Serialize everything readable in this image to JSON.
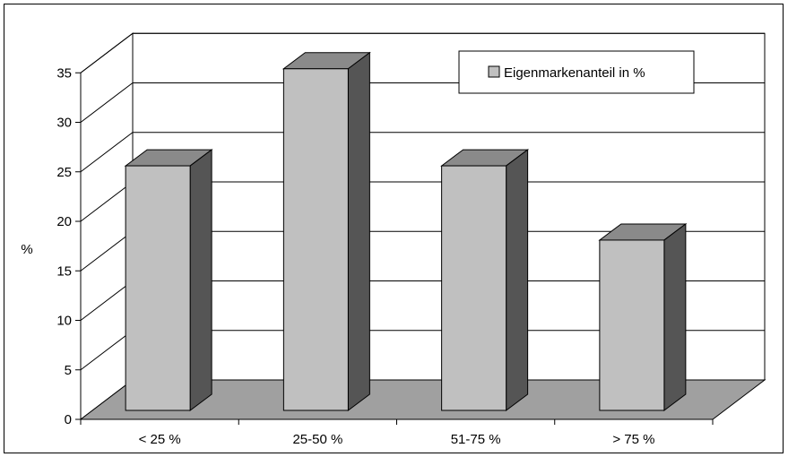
{
  "chart_data": {
    "type": "bar",
    "categories": [
      "< 25 %",
      "25-50 %",
      "51-75 %",
      "> 75 %"
    ],
    "series": [
      {
        "name": "Eigenmarkenanteil in %",
        "values": [
          24.7,
          34.5,
          24.7,
          17.2
        ]
      }
    ],
    "title": "",
    "xlabel": "",
    "ylabel": "%",
    "ylim": [
      0,
      35
    ],
    "yticks": [
      0,
      5,
      10,
      15,
      20,
      25,
      30,
      35
    ],
    "grid": true,
    "legend": "top-right",
    "style": "3d-column",
    "colors": {
      "bar_front": "#c0c0c0",
      "bar_side": "#555555",
      "bar_top": "#8a8a8a",
      "floor": "#a0a0a0",
      "legend_swatch": "#c0c0c0"
    }
  }
}
